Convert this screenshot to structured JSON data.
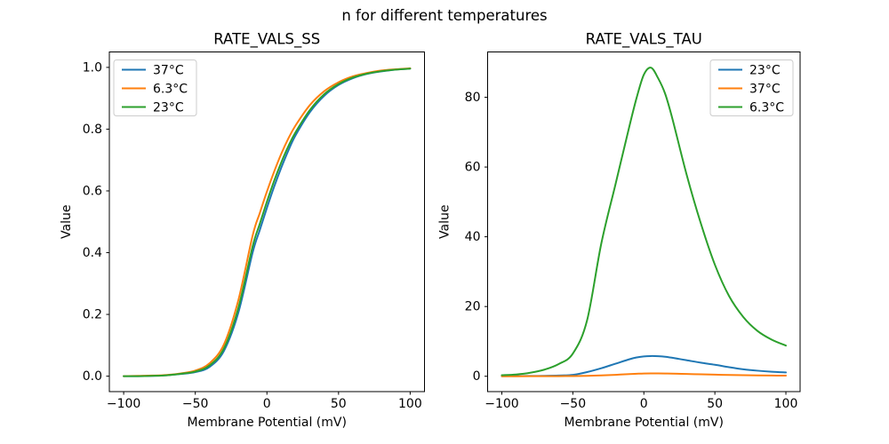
{
  "figure": {
    "title": "n for different temperatures",
    "background": "#ffffff"
  },
  "colors": {
    "blue": "#1f77b4",
    "orange": "#ff7f0e",
    "green": "#2ca02c",
    "text": "#000000",
    "axis": "#000000",
    "legend_border": "#cccccc",
    "legend_background": "#ffffff"
  },
  "chart_data": [
    {
      "type": "line",
      "title": "RATE_VALS_SS",
      "xlabel": "Membrane Potential (mV)",
      "ylabel": "Value",
      "xlim": [
        -110,
        110
      ],
      "ylim": [
        -0.05,
        1.05
      ],
      "grid": false,
      "legend_position": "upper-left",
      "xticks": {
        "values": [
          -100,
          -50,
          0,
          50,
          100
        ],
        "labels": [
          "−100",
          "−50",
          "0",
          "50",
          "100"
        ]
      },
      "yticks": {
        "values": [
          0.0,
          0.2,
          0.4,
          0.6,
          0.8,
          1.0
        ],
        "labels": [
          "0.0",
          "0.2",
          "0.4",
          "0.6",
          "0.8",
          "1.0"
        ]
      },
      "x": [
        -100,
        -90,
        -80,
        -70,
        -60,
        -50,
        -40,
        -30,
        -20,
        -10,
        -5,
        0,
        5,
        10,
        15,
        20,
        30,
        40,
        50,
        60,
        70,
        80,
        90,
        100
      ],
      "series": [
        {
          "name": "37°C",
          "color": "#1f77b4",
          "values": [
            0.0,
            0.0,
            0.001,
            0.003,
            0.007,
            0.013,
            0.03,
            0.082,
            0.205,
            0.4,
            0.473,
            0.545,
            0.613,
            0.675,
            0.731,
            0.78,
            0.855,
            0.908,
            0.943,
            0.965,
            0.979,
            0.987,
            0.993,
            0.996
          ]
        },
        {
          "name": "6.3°C",
          "color": "#ff7f0e",
          "values": [
            0.0,
            0.001,
            0.002,
            0.004,
            0.009,
            0.018,
            0.042,
            0.103,
            0.245,
            0.455,
            0.528,
            0.598,
            0.662,
            0.72,
            0.77,
            0.812,
            0.878,
            0.923,
            0.952,
            0.971,
            0.982,
            0.99,
            0.994,
            0.997
          ]
        },
        {
          "name": "23°C",
          "color": "#2ca02c",
          "values": [
            0.0,
            0.0,
            0.001,
            0.003,
            0.008,
            0.015,
            0.035,
            0.09,
            0.22,
            0.42,
            0.493,
            0.565,
            0.632,
            0.692,
            0.745,
            0.79,
            0.862,
            0.913,
            0.946,
            0.967,
            0.98,
            0.988,
            0.993,
            0.996
          ]
        }
      ]
    },
    {
      "type": "line",
      "title": "RATE_VALS_TAU",
      "xlabel": "Membrane Potential (mV)",
      "ylabel": "Value",
      "xlim": [
        -110,
        110
      ],
      "ylim": [
        -4.4,
        93.0
      ],
      "grid": false,
      "legend_position": "upper-right",
      "xticks": {
        "values": [
          -100,
          -50,
          0,
          50,
          100
        ],
        "labels": [
          "−100",
          "−50",
          "0",
          "50",
          "100"
        ]
      },
      "yticks": {
        "values": [
          0,
          20,
          40,
          60,
          80
        ],
        "labels": [
          "0",
          "20",
          "40",
          "60",
          "80"
        ]
      },
      "x": [
        -100,
        -90,
        -80,
        -70,
        -60,
        -50,
        -40,
        -30,
        -20,
        -10,
        -5,
        0,
        5,
        10,
        15,
        20,
        30,
        40,
        50,
        60,
        70,
        80,
        90,
        100
      ],
      "series": [
        {
          "name": "23°C",
          "color": "#1f77b4",
          "values": [
            0.03,
            0.05,
            0.08,
            0.13,
            0.22,
            0.4,
            1.2,
            2.3,
            3.6,
            4.9,
            5.4,
            5.7,
            5.8,
            5.75,
            5.6,
            5.3,
            4.6,
            3.9,
            3.3,
            2.6,
            2.0,
            1.6,
            1.3,
            1.1
          ]
        },
        {
          "name": "37°C",
          "color": "#ff7f0e",
          "values": [
            0.005,
            0.008,
            0.013,
            0.02,
            0.035,
            0.06,
            0.13,
            0.25,
            0.42,
            0.62,
            0.72,
            0.8,
            0.83,
            0.82,
            0.8,
            0.76,
            0.65,
            0.55,
            0.46,
            0.37,
            0.3,
            0.25,
            0.21,
            0.18
          ]
        },
        {
          "name": "6.3°C",
          "color": "#2ca02c",
          "values": [
            0.3,
            0.5,
            1.0,
            1.9,
            3.5,
            6.5,
            16,
            38,
            55,
            72,
            80,
            86.5,
            88.5,
            85.5,
            81,
            74,
            58,
            44,
            32,
            23,
            17,
            13,
            10.5,
            8.8
          ]
        }
      ]
    }
  ]
}
